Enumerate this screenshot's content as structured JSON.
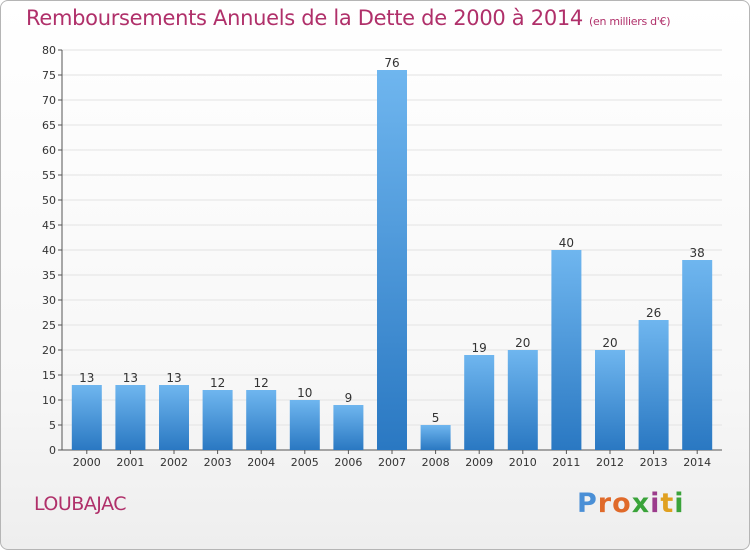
{
  "title": "Remboursements Annuels de la Dette de 2000 à 2014",
  "subtitle": "(en milliers d'€)",
  "commune": "LOUBAJAC",
  "logo": {
    "letters": [
      "P",
      "r",
      "o",
      "x",
      "i",
      "t",
      "i"
    ],
    "colors": [
      "#4a8fd6",
      "#e06a2a",
      "#e06a2a",
      "#3aa33a",
      "#9c3c8c",
      "#e0a020",
      "#3aa33a"
    ]
  },
  "colors": {
    "title": "#b0306a",
    "bar_top": "#6fb6ef",
    "bar_bottom": "#2a78c2",
    "grid": "#e3e3e3"
  },
  "chart_data": {
    "type": "bar",
    "title": "Remboursements Annuels de la Dette de 2000 à 2014",
    "subtitle": "(en milliers d'€)",
    "categories": [
      "2000",
      "2001",
      "2002",
      "2003",
      "2004",
      "2005",
      "2006",
      "2007",
      "2008",
      "2009",
      "2010",
      "2011",
      "2012",
      "2013",
      "2014"
    ],
    "values": [
      13,
      13,
      13,
      12,
      12,
      10,
      9,
      76,
      5,
      19,
      20,
      40,
      20,
      26,
      38
    ],
    "ylim": [
      0,
      80
    ],
    "yticks": [
      0,
      5,
      10,
      15,
      20,
      25,
      30,
      35,
      40,
      45,
      50,
      55,
      60,
      65,
      70,
      75,
      80
    ],
    "grid": true,
    "legend": "none"
  }
}
